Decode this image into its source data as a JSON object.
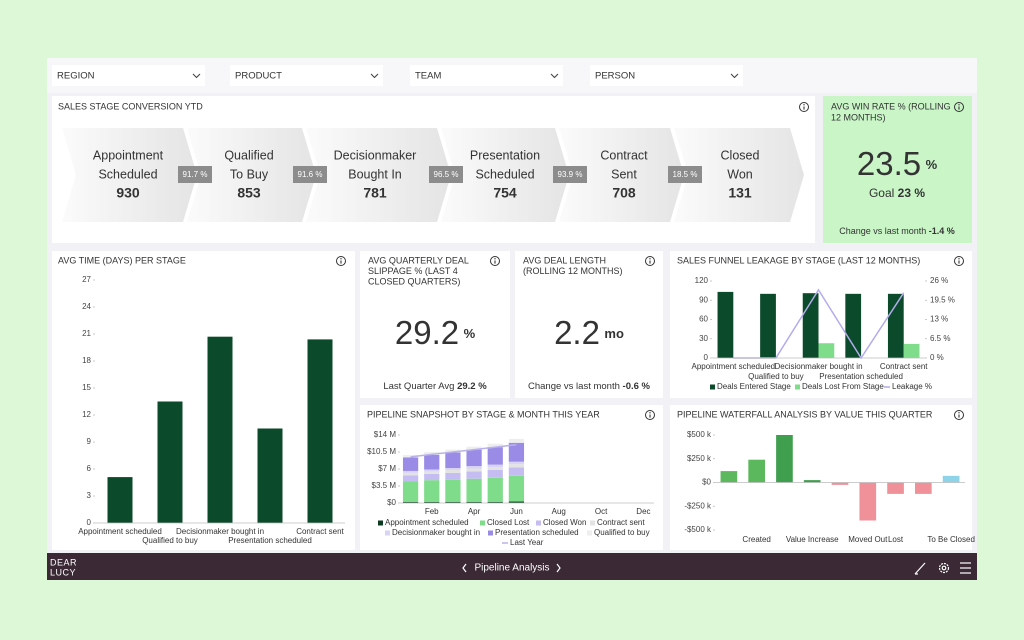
{
  "filters": [
    "REGION",
    "PRODUCT",
    "TEAM",
    "PERSON"
  ],
  "funnel": {
    "title": "SALES STAGE CONVERSION YTD",
    "stages": [
      {
        "lines": [
          "Appointment",
          "Scheduled"
        ],
        "value": 930
      },
      {
        "lines": [
          "Qualified",
          "To Buy"
        ],
        "value": 853
      },
      {
        "lines": [
          "Decisionmaker",
          "Bought In"
        ],
        "value": 781
      },
      {
        "lines": [
          "Presentation",
          "Scheduled"
        ],
        "value": 754
      },
      {
        "lines": [
          "Contract",
          "Sent"
        ],
        "value": 708
      },
      {
        "lines": [
          "Closed",
          "Won"
        ],
        "value": 131
      }
    ],
    "conversions": [
      "91.7 %",
      "91.6 %",
      "96.5 %",
      "93.9 %",
      "18.5 %"
    ]
  },
  "win_rate": {
    "title": [
      "AVG WIN RATE % (ROLLING",
      "12 MONTHS)"
    ],
    "value": 23.5,
    "unit": "%",
    "goal_label": "Goal",
    "goal": "23 %",
    "change_label": "Change vs last month",
    "change": "-1.4 %"
  },
  "kpis": [
    {
      "title": [
        "AVG QUARTERLY DEAL",
        "SLIPPAGE % (LAST 4",
        "CLOSED QUARTERS)"
      ],
      "value": 29.2,
      "unit": "%",
      "footer_label": "Last Quarter Avg",
      "footer_value": "29.2 %"
    },
    {
      "title": [
        "AVG DEAL LENGTH",
        "(ROLLING 12 MONTHS)"
      ],
      "value": 2.2,
      "unit": "mo",
      "footer_label": "Change vs last month",
      "footer_value": "-0.6 %"
    }
  ],
  "chart_data": [
    {
      "type": "bar",
      "title": "AVG TIME (DAYS) PER STAGE",
      "categories": [
        "Appointment scheduled",
        "Qualified to buy",
        "Decisionmaker bought in",
        "Presentation scheduled",
        "Contract sent"
      ],
      "values": [
        5.1,
        13.5,
        20.7,
        10.5,
        20.4
      ],
      "color": "#0b4a2a",
      "ylim": [
        0,
        27
      ],
      "yticks": [
        0,
        3,
        6,
        9,
        12,
        15,
        18,
        21,
        24,
        27
      ],
      "grid": false
    },
    {
      "type": "bar",
      "title": "SALES FUNNEL LEAKAGE BY STAGE (LAST 12 MONTHS)",
      "categories": [
        "Appointment scheduled",
        "Qualified to buy",
        "Decisionmaker bought in",
        "Presentation scheduled",
        "Contract sent"
      ],
      "series": [
        {
          "name": "Deals Entered Stage",
          "color": "#0b4a2a",
          "values": [
            103,
            100,
            101,
            100,
            100
          ]
        },
        {
          "name": "Deals Lost From Stage",
          "color": "#7fdc8a",
          "values": [
            0,
            0,
            23,
            0,
            22
          ]
        },
        {
          "name": "Leakage %",
          "color": "#b3abec",
          "type": "line",
          "axis": "y2",
          "values": [
            0,
            0,
            23,
            0,
            22
          ]
        }
      ],
      "ylim": [
        0,
        120
      ],
      "yticks": [
        0,
        30,
        60,
        90,
        120
      ],
      "y2lim": [
        0,
        26
      ],
      "y2ticks": [
        {
          "value": 0,
          "label": "0 %"
        },
        {
          "value": 6.5,
          "label": "6.5 %"
        },
        {
          "value": 13,
          "label": "13 %"
        },
        {
          "value": 19.5,
          "label": "19.5 %"
        },
        {
          "value": 26,
          "label": "26 %"
        }
      ],
      "grid": false
    },
    {
      "type": "bar",
      "title": "PIPELINE SNAPSHOT BY STAGE & MONTH THIS YEAR",
      "stacked": true,
      "categories": [
        null,
        "Feb",
        null,
        "Apr",
        null,
        "Jun",
        null,
        "Aug",
        null,
        "Oct",
        null,
        "Dec"
      ],
      "series": [
        {
          "name": "Appointment scheduled",
          "color": "#0b3d20",
          "values": [
            0.2,
            0.2,
            0.2,
            0.2,
            0.2,
            0.3,
            null,
            null,
            null,
            null,
            null,
            null
          ]
        },
        {
          "name": "Closed Lost",
          "color": "#7fdc8a",
          "values": [
            4.3,
            4.5,
            4.6,
            4.8,
            5.0,
            5.3,
            null,
            null,
            null,
            null,
            null,
            null
          ]
        },
        {
          "name": "Closed Won",
          "color": "#c5bdf2",
          "values": [
            1.2,
            1.3,
            1.4,
            1.5,
            1.6,
            1.7,
            null,
            null,
            null,
            null,
            null,
            null
          ]
        },
        {
          "name": "Contract sent",
          "color": "#e3e3e3",
          "values": [
            0.5,
            0.5,
            0.6,
            0.6,
            0.6,
            0.7,
            null,
            null,
            null,
            null,
            null,
            null
          ]
        },
        {
          "name": "Decisionmaker bought in",
          "color": "#d9d4f5",
          "values": [
            0.4,
            0.4,
            0.4,
            0.5,
            0.5,
            0.5,
            null,
            null,
            null,
            null,
            null,
            null
          ]
        },
        {
          "name": "Presentation scheduled",
          "color": "#9a8ce6",
          "values": [
            2.8,
            3.0,
            3.2,
            3.4,
            3.6,
            3.9,
            null,
            null,
            null,
            null,
            null,
            null
          ]
        },
        {
          "name": "Qualified to buy",
          "color": "#eeeeee",
          "values": [
            0.5,
            0.6,
            0.6,
            0.6,
            0.7,
            0.8,
            null,
            null,
            null,
            null,
            null,
            null
          ]
        },
        {
          "name": "Last Year",
          "color": "#b9b2ea",
          "type": "line",
          "values": [
            9.5,
            10,
            10.5,
            11,
            11.5,
            12,
            null,
            null,
            null,
            null,
            null,
            null
          ]
        }
      ],
      "ylim": [
        0,
        14
      ],
      "yticks": [
        {
          "value": 0,
          "label": "$0"
        },
        {
          "value": 3.5,
          "label": "$3.5 M"
        },
        {
          "value": 7,
          "label": "$7 M"
        },
        {
          "value": 10.5,
          "label": "$10.5 M"
        },
        {
          "value": 14,
          "label": "$14 M"
        }
      ],
      "grid": false
    },
    {
      "type": "bar",
      "title": "PIPELINE WATERFALL ANALYSIS BY VALUE THIS QUARTER",
      "categories": [
        null,
        "Created",
        null,
        "Value Increase",
        null,
        "Moved Out",
        "Lost",
        null,
        "To Be Closed"
      ],
      "values": [
        120,
        240,
        500,
        25,
        -25,
        -400,
        -120,
        -120,
        70
      ],
      "colors": [
        "#5cb85c",
        "#5cb85c",
        "#3f9f4f",
        "#3f9f4f",
        "#f0919a",
        "#f0919a",
        "#f0919a",
        "#f0919a",
        "#8fd3e8"
      ],
      "ylim": [
        -500,
        500
      ],
      "yticks": [
        {
          "value": -500,
          "label": "-$500 k"
        },
        {
          "value": -250,
          "label": "-$250 k"
        },
        {
          "value": 0,
          "label": "$0"
        },
        {
          "value": 250,
          "label": "$250 k"
        },
        {
          "value": 500,
          "label": "$500 k"
        }
      ],
      "grid": false
    }
  ],
  "footer": {
    "logo": [
      "DEAR",
      "LUCY"
    ],
    "page": "Pipeline Analysis"
  }
}
